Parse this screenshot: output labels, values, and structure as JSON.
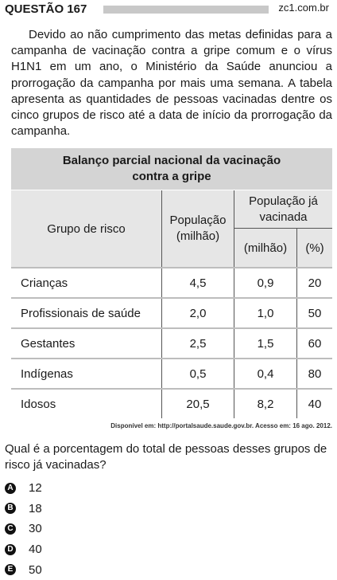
{
  "header": {
    "title": "QUESTÃO 167",
    "site": "zc1.com.br"
  },
  "text": "Devido ao não cumprimento das metas definidas para a campanha de vacinação contra a gripe comum e o vírus H1N1 em um ano, o Ministério da Saúde anunciou a prorrogação da campanha por mais uma semana. A tabela apresenta as quantidades de pessoas vacinadas dentre os cinco grupos de risco até a data de início da prorrogação da campanha.",
  "table": {
    "title": "Balanço parcial nacional da vacinação contra a gripe",
    "columns": {
      "group": "Grupo de risco",
      "population": "População (milhão)",
      "vaccinated": "População já vacinada",
      "vaccinated_million": "(milhão)",
      "vaccinated_percent": "(%)"
    },
    "rows": [
      [
        "Crianças",
        "4,5",
        "0,9",
        "20"
      ],
      [
        "Profissionais de saúde",
        "2,0",
        "1,0",
        "50"
      ],
      [
        "Gestantes",
        "2,5",
        "1,5",
        "60"
      ],
      [
        "Indígenas",
        "0,5",
        "0,4",
        "80"
      ],
      [
        "Idosos",
        "20,5",
        "8,2",
        "40"
      ]
    ]
  },
  "source": "Disponível em: http://portalsaude.saude.gov.br. Acesso em: 16 ago. 2012.",
  "question": "Qual é a porcentagem do total de pessoas desses grupos de risco já vacinadas?",
  "options": [
    {
      "letter": "A",
      "text": "12"
    },
    {
      "letter": "B",
      "text": "18"
    },
    {
      "letter": "C",
      "text": "30"
    },
    {
      "letter": "D",
      "text": "40"
    },
    {
      "letter": "E",
      "text": "50"
    }
  ]
}
